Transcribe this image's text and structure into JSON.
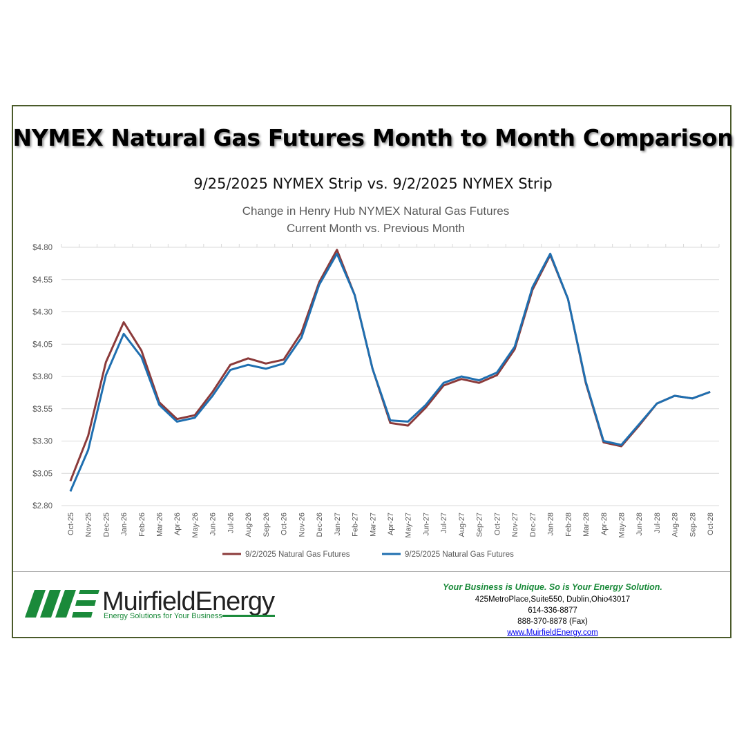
{
  "header": {
    "title": "NYMEX Natural Gas Futures Month to Month Comparison",
    "subtitle": "9/25/2025 NYMEX Strip vs. 9/2/2025 NYMEX Strip"
  },
  "chart_data": {
    "type": "line",
    "title": "Change in Henry Hub NYMEX Natural Gas Futures",
    "subtitle": "Current Month vs. Previous Month",
    "categories": [
      "Oct-25",
      "Nov-25",
      "Dec-25",
      "Jan-26",
      "Feb-26",
      "Mar-26",
      "Apr-26",
      "May-26",
      "Jun-26",
      "Jul-26",
      "Aug-26",
      "Sep-26",
      "Oct-26",
      "Nov-26",
      "Dec-26",
      "Jan-27",
      "Feb-27",
      "Mar-27",
      "Apr-27",
      "May-27",
      "Jun-27",
      "Jul-27",
      "Aug-27",
      "Sep-27",
      "Oct-27",
      "Nov-27",
      "Dec-27",
      "Jan-28",
      "Feb-28",
      "Mar-28",
      "Apr-28",
      "May-28",
      "Jun-28",
      "Jul-28",
      "Aug-28",
      "Sep-28",
      "Oct-28"
    ],
    "series": [
      {
        "name": "9/2/2025 Natural Gas Futures",
        "color": "#8b3a3a",
        "values": [
          2.99,
          3.34,
          3.91,
          4.22,
          4.0,
          3.6,
          3.47,
          3.5,
          3.68,
          3.89,
          3.94,
          3.9,
          3.93,
          4.14,
          4.53,
          4.78,
          4.43,
          3.86,
          3.44,
          3.42,
          3.56,
          3.73,
          3.78,
          3.75,
          3.81,
          4.01,
          4.47,
          4.74,
          4.4,
          3.75,
          3.29,
          3.26,
          3.42,
          3.59,
          3.65,
          3.63,
          3.68
        ]
      },
      {
        "name": "9/25/2025 Natural Gas Futures",
        "color": "#1f6fb0",
        "values": [
          2.91,
          3.23,
          3.81,
          4.13,
          3.95,
          3.58,
          3.45,
          3.48,
          3.65,
          3.85,
          3.89,
          3.86,
          3.9,
          4.1,
          4.51,
          4.75,
          4.43,
          3.86,
          3.46,
          3.45,
          3.58,
          3.75,
          3.8,
          3.77,
          3.83,
          4.03,
          4.49,
          4.75,
          4.4,
          3.76,
          3.3,
          3.27,
          3.43,
          3.59,
          3.65,
          3.63,
          3.68
        ]
      }
    ],
    "ylim": [
      2.8,
      4.8
    ],
    "yticks": [
      2.8,
      3.05,
      3.3,
      3.55,
      3.8,
      4.05,
      4.3,
      4.55,
      4.8
    ],
    "ytick_labels": [
      "$2.80",
      "$3.05",
      "$3.30",
      "$3.55",
      "$3.80",
      "$4.05",
      "$4.30",
      "$4.55",
      "$4.80"
    ],
    "grid": true,
    "legend": "bottom"
  },
  "footer": {
    "logo_text": "MuirfieldEnergy",
    "logo_tagline": "Energy Solutions for Your Business",
    "tagline": "Your Business is Unique. So is Your Energy Solution.",
    "address": "425MetroPlace,Suite550, Dublin,Ohio43017",
    "phone": "614-336-8877",
    "fax": "888-370-8878 (Fax)",
    "website": "www.MuirfieldEnergy.com",
    "colors": {
      "brand_green": "#1a8a3a",
      "frame": "#4a5a2a"
    }
  }
}
